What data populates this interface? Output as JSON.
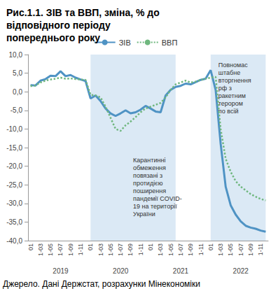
{
  "chart_data": {
    "type": "line",
    "title": "Рис.1.1. ЗІВ та ВВП, зміна, % до відповідного періоду попереднього року",
    "source": "Джерело. Дані Держстат, розрахунки Мінекономіки",
    "categories": [
      "01",
      null,
      "1-03",
      null,
      "1-05",
      null,
      "1-07",
      null,
      "1-09",
      null,
      "1-11",
      null,
      "01",
      null,
      "1-03",
      null,
      "1-05",
      null,
      "1-07",
      null,
      "1-09",
      null,
      "1-11",
      null,
      "01",
      null,
      "1-03",
      null,
      "1-05",
      null,
      "1-07",
      null,
      "1-09",
      null,
      "1-11",
      null,
      "01",
      null,
      "1-03",
      null,
      "1-05",
      null,
      "1-07",
      null,
      "1-09",
      null,
      "1-11",
      null
    ],
    "years": [
      "2019",
      "2020",
      "2021",
      "2022"
    ],
    "series": [
      {
        "name": "ЗІВ",
        "color": "#4f93c4",
        "line_style": "solid",
        "values": [
          1.8,
          1.7,
          3.0,
          3.4,
          4.3,
          4.2,
          5.5,
          4.2,
          4.5,
          3.8,
          3.3,
          2.9,
          -1.8,
          -1.0,
          -2.5,
          -4.5,
          -5.8,
          -6.5,
          -5.8,
          -5.0,
          -5.8,
          -5.5,
          -4.8,
          -3.8,
          -4.5,
          -5.3,
          -5.5,
          -1.0,
          0.5,
          1.3,
          1.6,
          2.2,
          2.0,
          2.6,
          3.2,
          3.5,
          5.8,
          0.5,
          -14.0,
          -25.5,
          -30.5,
          -33.0,
          -34.8,
          -36.0,
          -36.5,
          -36.8,
          -37.3,
          -37.6
        ]
      },
      {
        "name": "ВВП",
        "color": "#6fb77e",
        "line_style": "dotted",
        "values": [
          1.5,
          1.7,
          2.5,
          3.0,
          3.3,
          3.5,
          3.8,
          3.5,
          3.6,
          3.4,
          3.3,
          3.2,
          -0.8,
          -1.0,
          -1.5,
          -4.0,
          -7.0,
          -10.0,
          -10.5,
          -9.0,
          -8.0,
          -6.8,
          -5.5,
          -4.5,
          -4.0,
          -3.5,
          -3.0,
          -1.5,
          0.5,
          2.0,
          2.5,
          3.0,
          2.5,
          2.7,
          3.2,
          3.5,
          3.8,
          4.0,
          -10.0,
          -18.0,
          -21.5,
          -24.0,
          -25.5,
          -26.5,
          -27.5,
          -28.2,
          -28.8,
          -29.2
        ]
      }
    ],
    "periods": [
      {
        "from": 12,
        "to": 29,
        "text": "Карантинні\nобмеження\nповязані з\nпротидією\nпоширення\nпандемії COVID-\n19 на території\nУкраїни"
      },
      {
        "from": 36,
        "to": 47,
        "text": "Повномас\nштабне\nвторгнення\nрф з\nракетним\nтерором\nпо всій"
      }
    ],
    "ylim": [
      -40,
      10
    ],
    "yticks": [
      {
        "value": -40,
        "label": "-40,0"
      },
      {
        "value": -35,
        "label": "-35,0"
      },
      {
        "value": -30,
        "label": "-30,0"
      },
      {
        "value": -25,
        "label": "-25,0"
      },
      {
        "value": -20,
        "label": "-20,0"
      },
      {
        "value": -15,
        "label": "-15,0"
      },
      {
        "value": -10,
        "label": "-10,0"
      },
      {
        "value": -5,
        "label": "-5,0"
      },
      {
        "value": 0,
        "label": "0,0"
      },
      {
        "value": 5,
        "label": "5,0"
      },
      {
        "value": 10,
        "label": "10,0"
      }
    ],
    "legend": "top",
    "grid": false
  }
}
